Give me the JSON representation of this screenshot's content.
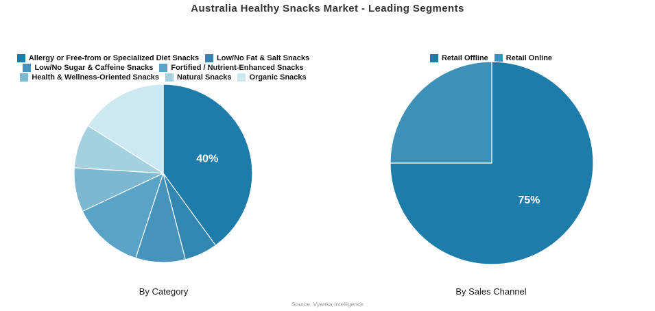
{
  "title": "Australia Healthy Snacks Market - Leading Segments",
  "source": "Source: Vyansa Intelligence",
  "label_text_color": "#ffffff",
  "wedge_border_color": "#ffffff",
  "chart_data": [
    {
      "type": "pie",
      "name": "category-pie",
      "caption": "By Category",
      "start_angle": 0,
      "direction": "clockwise",
      "legend_position": "top",
      "slices": [
        {
          "label": "Allergy or Free-from or Specialized Diet Snacks",
          "value": 40,
          "color": "#1e7cab",
          "pct_label": "40%"
        },
        {
          "label": "Low/No Fat & Salt Snacks",
          "value": 6,
          "color": "#3187b2",
          "pct_label": null
        },
        {
          "label": "Low/No Sugar & Caffeine Snacks",
          "value": 9,
          "color": "#4694bc",
          "pct_label": null
        },
        {
          "label": "Fortified / Nutrient-Enhanced Snacks",
          "value": 13,
          "color": "#58a3c6",
          "pct_label": null
        },
        {
          "label": "Health & Wellness-Oriented Snacks",
          "value": 8,
          "color": "#7cb8d2",
          "pct_label": null
        },
        {
          "label": "Natural Snacks",
          "value": 8,
          "color": "#a4d1e0",
          "pct_label": null
        },
        {
          "label": "Organic Snacks",
          "value": 16,
          "color": "#cce8f1",
          "pct_label": null
        }
      ]
    },
    {
      "type": "pie",
      "name": "sales-channel-pie",
      "caption": "By Sales Channel",
      "start_angle": 0,
      "direction": "clockwise",
      "legend_position": "top",
      "slices": [
        {
          "label": "Retail Offline",
          "value": 75,
          "color": "#1e7cab",
          "pct_label": "75%"
        },
        {
          "label": "Retail Online",
          "value": 25,
          "color": "#3d91b9",
          "pct_label": null
        }
      ]
    }
  ]
}
